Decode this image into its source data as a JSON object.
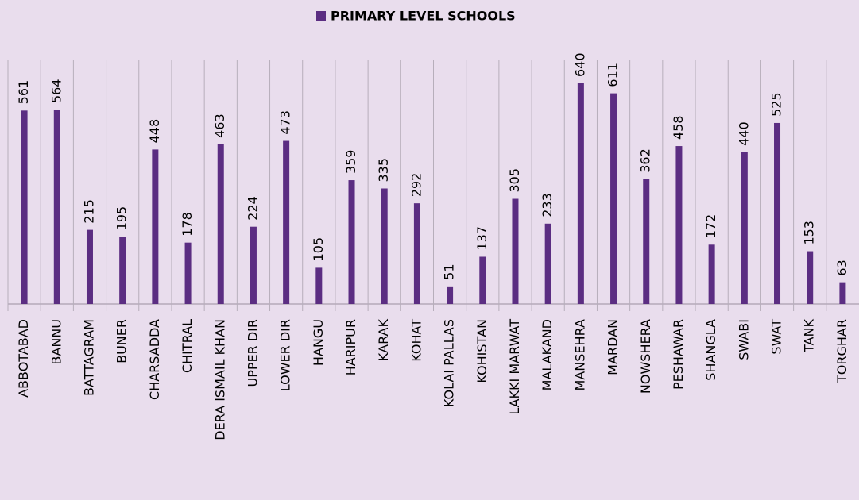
{
  "chart_data": {
    "type": "bar",
    "legend": "PRIMARY LEVEL SCHOOLS",
    "color": "#5b2d82",
    "categories": [
      "ABBOTABAD",
      "BANNU",
      "BATTAGRAM",
      "BUNER",
      "CHARSADDA",
      "CHITRAL",
      "DERA ISMAIL KHAN",
      "UPPER DIR",
      "LOWER DIR",
      "HANGU",
      "HARIPUR",
      "KARAK",
      "KOHAT",
      "KOLAI PALLAS",
      "KOHISTAN",
      "LAKKI MARWAT",
      "MALAKAND",
      "MANSEHRA",
      "MARDAN",
      "NOWSHERA",
      "PESHAWAR",
      "SHANGLA",
      "SWABI",
      "SWAT",
      "TANK",
      "TORGHAR"
    ],
    "values": [
      561,
      564,
      215,
      195,
      448,
      178,
      463,
      224,
      473,
      105,
      359,
      335,
      292,
      51,
      137,
      305,
      233,
      640,
      611,
      362,
      458,
      172,
      440,
      525,
      153,
      63
    ]
  }
}
